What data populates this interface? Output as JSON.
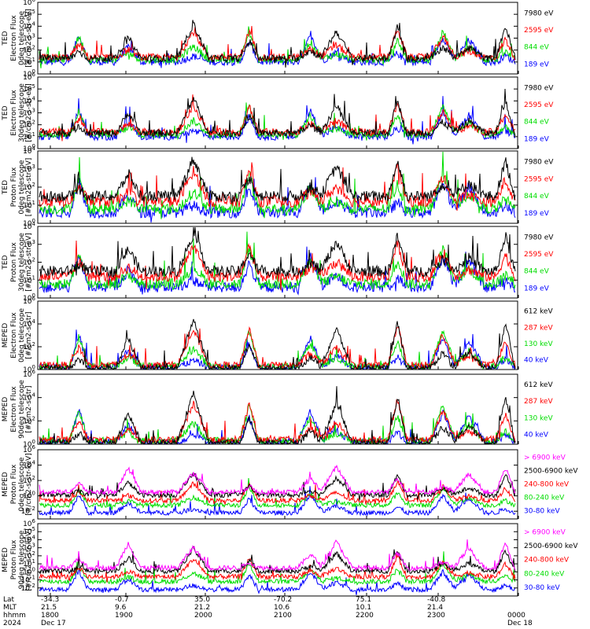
{
  "chart_data": {
    "type": "line",
    "panels": [
      {
        "ylabel": [
          "TED",
          "Electron Flux",
          "0deg telescope",
          "[#/cm2-s-str-eV]"
        ],
        "yscale": "log",
        "ylim_exp": [
          0,
          6
        ],
        "tick_exps": [
          0,
          1,
          2,
          3,
          4,
          5,
          6
        ],
        "legend": [
          {
            "label": "7980 eV",
            "color": "#000000"
          },
          {
            "label": "2595 eV",
            "color": "#ff0000"
          },
          {
            "label": "844 eV",
            "color": "#00dd00"
          },
          {
            "label": "189 eV",
            "color": "#0000ff"
          }
        ]
      },
      {
        "ylabel": [
          "TED",
          "Electron Flux",
          "30deg telescope",
          "[#/cm2-s-str-eV]"
        ],
        "yscale": "log",
        "ylim_exp": [
          0,
          6
        ],
        "tick_exps": [
          0,
          1,
          2,
          3,
          4,
          5,
          6
        ],
        "legend": [
          {
            "label": "7980 eV",
            "color": "#000000"
          },
          {
            "label": "2595 eV",
            "color": "#ff0000"
          },
          {
            "label": "844 eV",
            "color": "#00dd00"
          },
          {
            "label": "189 eV",
            "color": "#0000ff"
          }
        ]
      },
      {
        "ylabel": [
          "TED",
          "Proton Flux",
          "0deg telescope",
          "[#/cm2-s-str-eV]"
        ],
        "yscale": "log",
        "ylim_exp": [
          0,
          4
        ],
        "tick_exps": [
          0,
          1,
          2,
          3,
          4
        ],
        "legend": [
          {
            "label": "7980 eV",
            "color": "#000000"
          },
          {
            "label": "2595 eV",
            "color": "#ff0000"
          },
          {
            "label": "844 eV",
            "color": "#00dd00"
          },
          {
            "label": "189 eV",
            "color": "#0000ff"
          }
        ]
      },
      {
        "ylabel": [
          "TED",
          "Proton Flux",
          "30deg telescope",
          "[#/cm2-s-str-eV]"
        ],
        "yscale": "log",
        "ylim_exp": [
          0,
          4
        ],
        "tick_exps": [
          0,
          1,
          2,
          3,
          4
        ],
        "legend": [
          {
            "label": "7980 eV",
            "color": "#000000"
          },
          {
            "label": "2595 eV",
            "color": "#ff0000"
          },
          {
            "label": "844 eV",
            "color": "#00dd00"
          },
          {
            "label": "189 eV",
            "color": "#0000ff"
          }
        ]
      },
      {
        "ylabel": [
          "MEPED",
          "Electron Flux",
          "0deg telescope",
          "[#/cm2-s-str]"
        ],
        "yscale": "log",
        "ylim_exp": [
          0,
          6
        ],
        "tick_exps": [
          0,
          2,
          4,
          6
        ],
        "legend": [
          {
            "label": "612 keV",
            "color": "#000000"
          },
          {
            "label": "287 keV",
            "color": "#ff0000"
          },
          {
            "label": "130 keV",
            "color": "#00dd00"
          },
          {
            "label": "40 keV",
            "color": "#0000ff"
          }
        ]
      },
      {
        "ylabel": [
          "MEPED",
          "Electron Flux",
          "90deg telescope",
          "[#/cm2-s-str]"
        ],
        "yscale": "log",
        "ylim_exp": [
          0,
          6
        ],
        "tick_exps": [
          0,
          2,
          4,
          6
        ],
        "legend": [
          {
            "label": "612 keV",
            "color": "#000000"
          },
          {
            "label": "287 keV",
            "color": "#ff0000"
          },
          {
            "label": "130 keV",
            "color": "#00dd00"
          },
          {
            "label": "40 keV",
            "color": "#0000ff"
          }
        ]
      },
      {
        "ylabel": [
          "MEPED",
          "Proton Flux",
          "0deg telescope",
          "[#/cm2-s-str-keV]"
        ],
        "yscale": "log",
        "ylim_exp": [
          -3,
          6
        ],
        "tick_exps": [
          -2,
          0,
          2,
          4,
          6
        ],
        "legend": [
          {
            "label": "> 6900 keV",
            "color": "#ff00ff"
          },
          {
            "label": "2500-6900 keV",
            "color": "#000000"
          },
          {
            "label": "240-800 keV",
            "color": "#ff0000"
          },
          {
            "label": "80-240 keV",
            "color": "#00dd00"
          },
          {
            "label": "30-80 keV",
            "color": "#0000ff"
          }
        ]
      },
      {
        "ylabel": [
          "MEPED",
          "Proton Flux",
          "90deg telescope",
          "[#/cm2-s-str-keV]"
        ],
        "yscale": "log",
        "ylim_exp": [
          -3,
          6
        ],
        "tick_exps": [
          -2,
          -1,
          0,
          1,
          2,
          3,
          4,
          5,
          6
        ],
        "legend": [
          {
            "label": "> 6900 keV",
            "color": "#ff00ff"
          },
          {
            "label": "2500-6900 keV",
            "color": "#000000"
          },
          {
            "label": "240-800 keV",
            "color": "#ff0000"
          },
          {
            "label": "80-240 keV",
            "color": "#00dd00"
          },
          {
            "label": "30-80 keV",
            "color": "#0000ff"
          }
        ]
      }
    ],
    "x_axis": {
      "row_labels": [
        "Lat",
        "MLT",
        "hhmm",
        "2024"
      ],
      "ticks": [
        {
          "lat": "-34.3",
          "mlt": "21.5",
          "hhmm": "1800",
          "date": "Dec 17"
        },
        {
          "lat": "-0.7",
          "mlt": "9.6",
          "hhmm": "1900",
          "date": ""
        },
        {
          "lat": "35.0",
          "mlt": "21.2",
          "hhmm": "2000",
          "date": ""
        },
        {
          "lat": "-70.2",
          "mlt": "10.6",
          "hhmm": "2100",
          "date": ""
        },
        {
          "lat": "75.1",
          "mlt": "10.1",
          "hhmm": "2200",
          "date": ""
        },
        {
          "lat": "-40.8",
          "mlt": "21.4",
          "hhmm": "2300",
          "date": ""
        },
        {
          "lat": "",
          "mlt": "",
          "hhmm": "0000",
          "date": "Dec 18"
        }
      ]
    },
    "passes_hhmm": [
      1822,
      1900,
      1950,
      2033,
      2120,
      2140,
      2227,
      2302,
      2322,
      2350
    ]
  }
}
